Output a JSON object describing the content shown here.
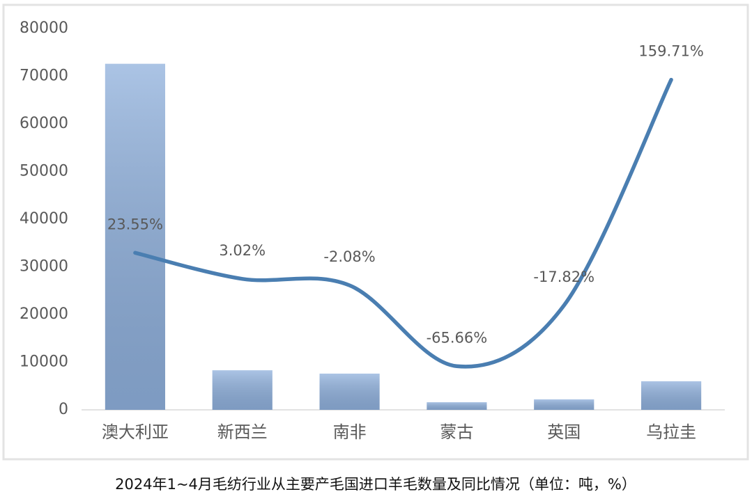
{
  "chart_data": {
    "type": "combo",
    "caption": "2024年1~4月毛纺行业从主要产毛国进口羊毛数量及同比情况（单位：吨，%）",
    "categories": [
      "澳大利亚",
      "新西兰",
      "南非",
      "蒙古",
      "英国",
      "乌拉圭"
    ],
    "series": [
      {
        "type": "bar",
        "color": "#8fb0dc",
        "values": [
          72600,
          8300,
          7600,
          1600,
          2200,
          6000
        ]
      },
      {
        "type": "line",
        "axis": "y2",
        "color": "#4a7eb1",
        "values": [
          23.55,
          3.02,
          -2.08,
          -65.66,
          -17.82,
          159.71
        ],
        "value_labels": [
          "23.55%",
          "3.02%",
          "-2.08%",
          "-65.66%",
          "-17.82%",
          "159.71%"
        ]
      }
    ],
    "ylim": [
      0,
      80000
    ],
    "yticks": [
      0,
      10000,
      20000,
      30000,
      40000,
      50000,
      60000,
      70000,
      80000
    ],
    "y2lim": [
      -100,
      200
    ]
  }
}
